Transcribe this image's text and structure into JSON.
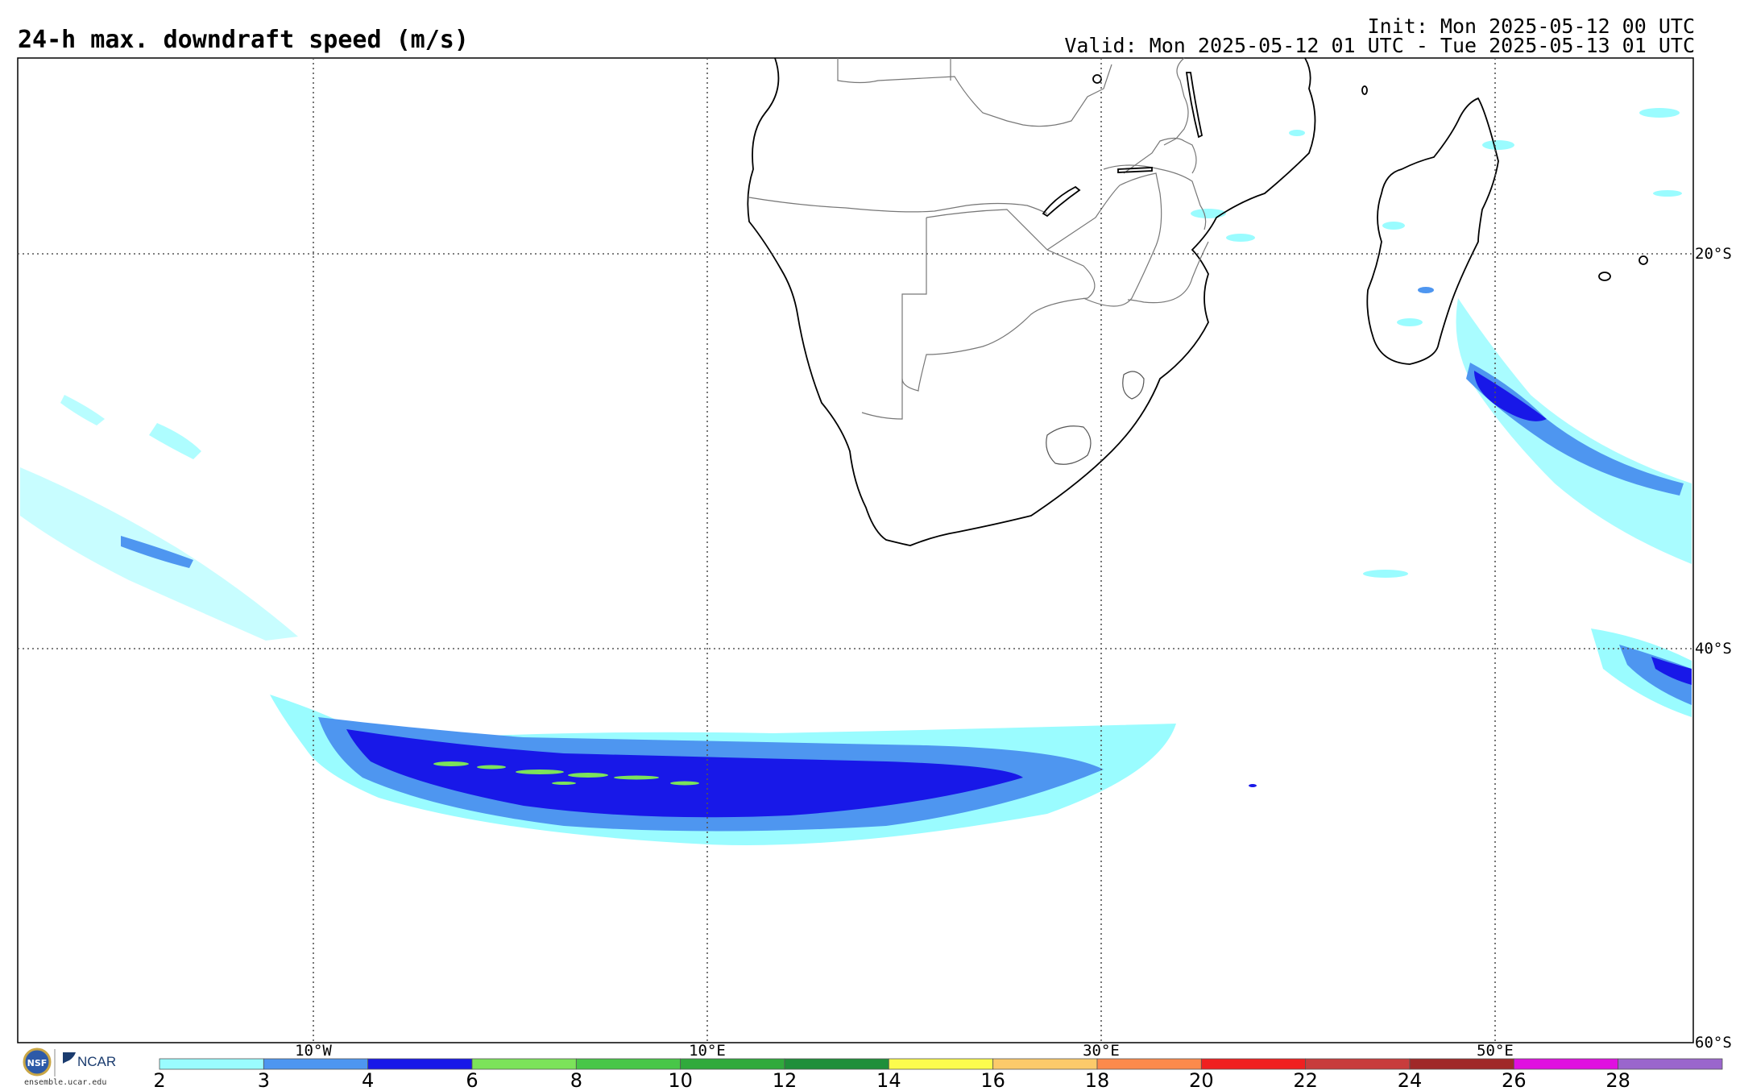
{
  "title": "24-h max. downdraft speed (m/s)",
  "init": "Init: Mon 2025-05-12 00 UTC",
  "valid": "Valid: Mon 2025-05-12 01 UTC - Tue 2025-05-13 01 UTC",
  "lon_labels": [
    "10°W",
    "10°E",
    "30°E",
    "50°E"
  ],
  "lat_labels": [
    "20°S",
    "40°S",
    "60°S"
  ],
  "colorbar": {
    "ticks": [
      "2",
      "3",
      "4",
      "6",
      "8",
      "10",
      "12",
      "14",
      "16",
      "18",
      "20",
      "22",
      "24",
      "26",
      "28"
    ],
    "colors": [
      "#9afcff",
      "#4e96f0",
      "#1818e8",
      "#7ce35a",
      "#48c648",
      "#30aa3c",
      "#1f8f3a",
      "#fcfc4e",
      "#fcca6a",
      "#fc8a4c",
      "#f02020",
      "#c83c3c",
      "#a02828",
      "#e010e0",
      "#9a66cc"
    ]
  },
  "logos": {
    "ncar": "NCAR",
    "site": "ensemble.ucar.edu"
  },
  "icons": [
    "nsf-logo-icon",
    "ncar-logo-icon"
  ]
}
